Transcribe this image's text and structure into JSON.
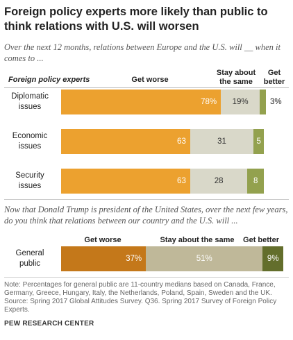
{
  "title": "Foreign policy experts more likely than public to think relations with U.S. will worsen",
  "question1": "Over the next 12 months, relations between Europe and the U.S. will __ when it comes to ...",
  "question2": "Now that Donald Trump is president of the United States, over the next few years, do you think that relations between our country and the U.S. will ...",
  "note": "Note: Percentages for general public are 11-country medians based on Canada, France, Germany, Greece, Hungary, Italy, the Netherlands, Poland, Spain, Sweden and the UK.",
  "source": "Source: Spring 2017 Global Attitudes Survey. Q36. Spring 2017 Survey of Foreign Policy Experts.",
  "brand": "PEW RESEARCH CENTER",
  "colors": {
    "expert_worse": "#ECA12F",
    "expert_same": "#D9D8C9",
    "expert_better": "#93A14E",
    "public_worse": "#C4781A",
    "public_same": "#BFB899",
    "public_better": "#636E2C"
  },
  "chart_data": [
    {
      "type": "bar",
      "orientation": "horizontal",
      "stacked": true,
      "title": "Foreign policy experts",
      "categories": [
        "Diplomatic issues",
        "Economic issues",
        "Security issues"
      ],
      "series": [
        {
          "name": "Get worse",
          "values": [
            78,
            63,
            63
          ],
          "labels": [
            "78%",
            "63",
            "63"
          ]
        },
        {
          "name": "Stay about the same",
          "values": [
            19,
            31,
            28
          ],
          "labels": [
            "19%",
            "31",
            "28"
          ]
        },
        {
          "name": "Get better",
          "values": [
            3,
            5,
            8
          ],
          "labels": [
            "3%",
            "5",
            "8"
          ]
        }
      ],
      "xlim": [
        0,
        100
      ]
    },
    {
      "type": "bar",
      "orientation": "horizontal",
      "stacked": true,
      "categories": [
        "General public"
      ],
      "series": [
        {
          "name": "Get worse",
          "values": [
            37
          ],
          "labels": [
            "37%"
          ]
        },
        {
          "name": "Stay about the same",
          "values": [
            51
          ],
          "labels": [
            "51%"
          ]
        },
        {
          "name": "Get better",
          "values": [
            9
          ],
          "labels": [
            "9%"
          ]
        }
      ],
      "xlim": [
        0,
        100
      ]
    }
  ]
}
